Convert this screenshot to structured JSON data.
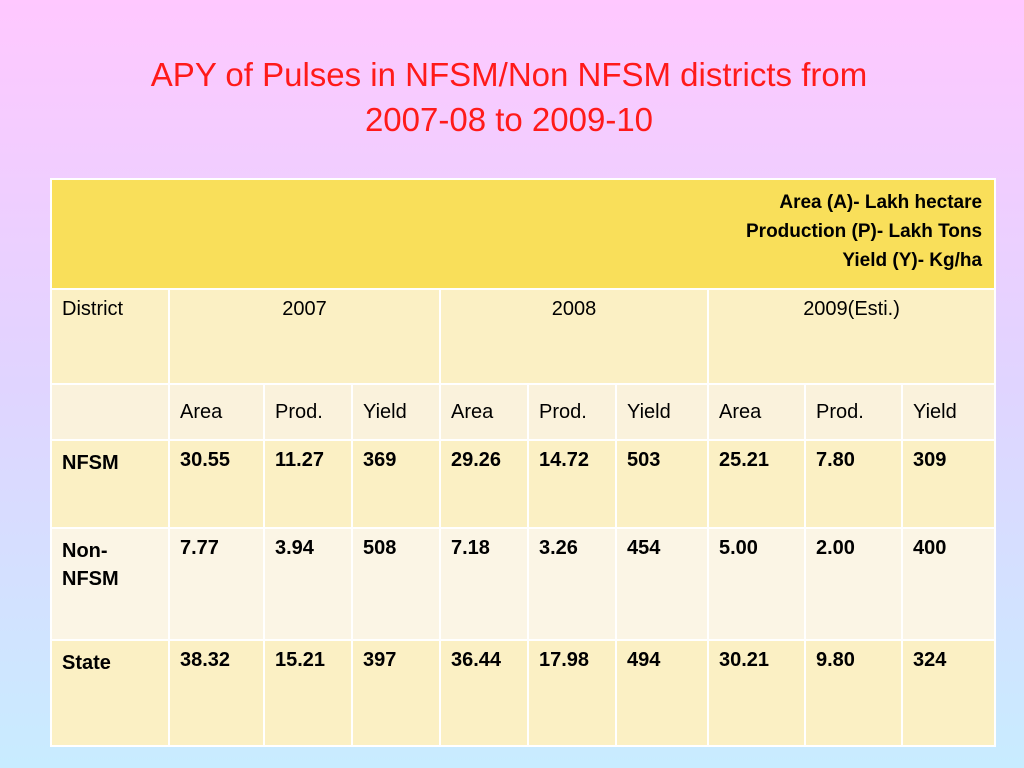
{
  "title": {
    "line1": "APY of Pulses in NFSM/Non NFSM districts from",
    "line2": "2007-08 to 2009-10"
  },
  "table": {
    "units": {
      "area": "Area (A)- Lakh hectare",
      "production": "Production (P)- Lakh Tons",
      "yield": "Yield (Y)- Kg/ha"
    },
    "district_header": "District",
    "years": [
      "2007",
      "2008",
      "2009(Esti.)"
    ],
    "subheaders": [
      "Area",
      "Prod.",
      "Yield",
      "Area",
      "Prod.",
      "Yield",
      "Area",
      "Prod.",
      "Yield"
    ],
    "rows": [
      {
        "district": "NFSM",
        "values": [
          "30.55",
          "11.27",
          "369",
          "29.26",
          "14.72",
          "503",
          "25.21",
          "7.80",
          "309"
        ]
      },
      {
        "district": "Non-NFSM",
        "values": [
          "7.77",
          "3.94",
          "508",
          "7.18",
          "3.26",
          "454",
          "5.00",
          "2.00",
          "400"
        ]
      },
      {
        "district": "State",
        "values": [
          "38.32",
          "15.21",
          "397",
          "36.44",
          "17.98",
          "494",
          "30.21",
          "9.80",
          "324"
        ]
      }
    ]
  },
  "colors": {
    "title": "#ff1a1a",
    "units_band": "#f9df5a",
    "cell_dark": "#fbf0c4",
    "cell_light": "#fbf5e5"
  }
}
